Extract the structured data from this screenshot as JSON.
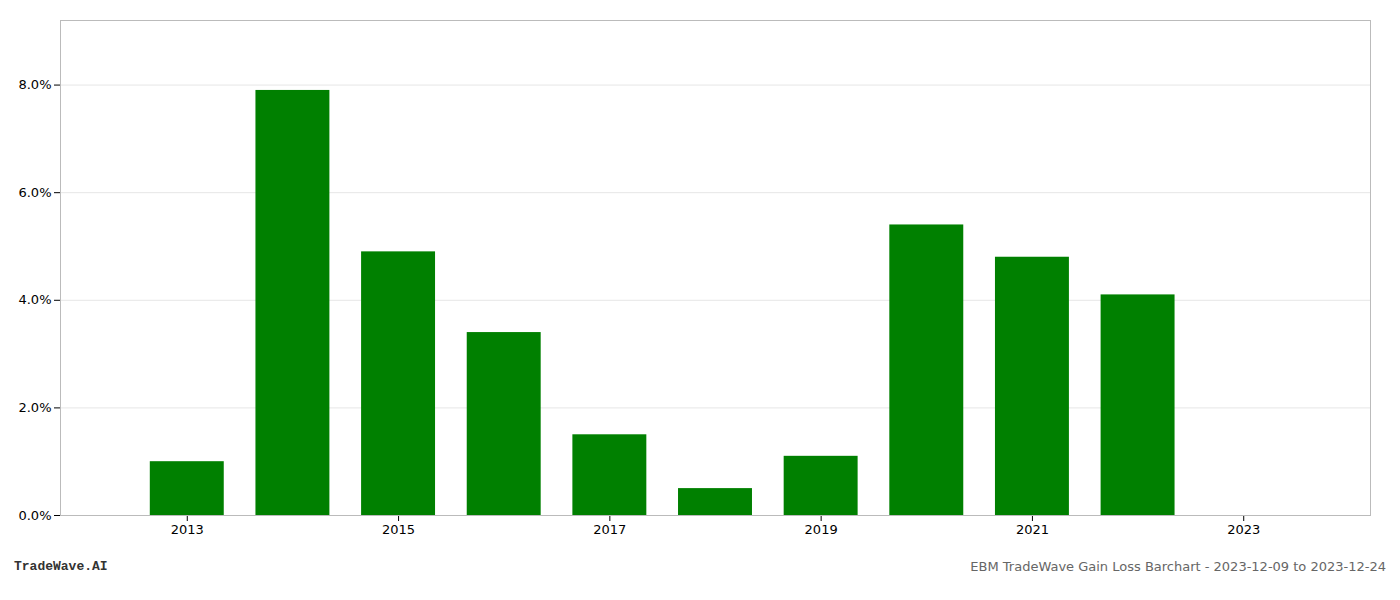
{
  "chart_data": {
    "type": "bar",
    "x": [
      2013,
      2014,
      2015,
      2016,
      2017,
      2018,
      2019,
      2020,
      2021,
      2022,
      2023
    ],
    "values": [
      0.01,
      0.079,
      0.049,
      0.034,
      0.015,
      0.005,
      0.011,
      0.054,
      0.048,
      0.041,
      0.0
    ],
    "color": "#008000",
    "xlim": [
      2011.8,
      2024.2
    ],
    "xticks": [
      2013,
      2015,
      2017,
      2019,
      2021,
      2023
    ],
    "ylim": [
      0.0,
      0.092
    ],
    "yticks": [
      {
        "value": 0.0,
        "label": "0.0%"
      },
      {
        "value": 0.02,
        "label": "2.0%"
      },
      {
        "value": 0.04,
        "label": "4.0%"
      },
      {
        "value": 0.06,
        "label": "6.0%"
      },
      {
        "value": 0.08,
        "label": "8.0%"
      }
    ],
    "grid": true,
    "annotations": [
      "TradeWave.AI",
      "EBM TradeWave Gain Loss Barchart - 2023-12-09 to 2023-12-24"
    ]
  }
}
